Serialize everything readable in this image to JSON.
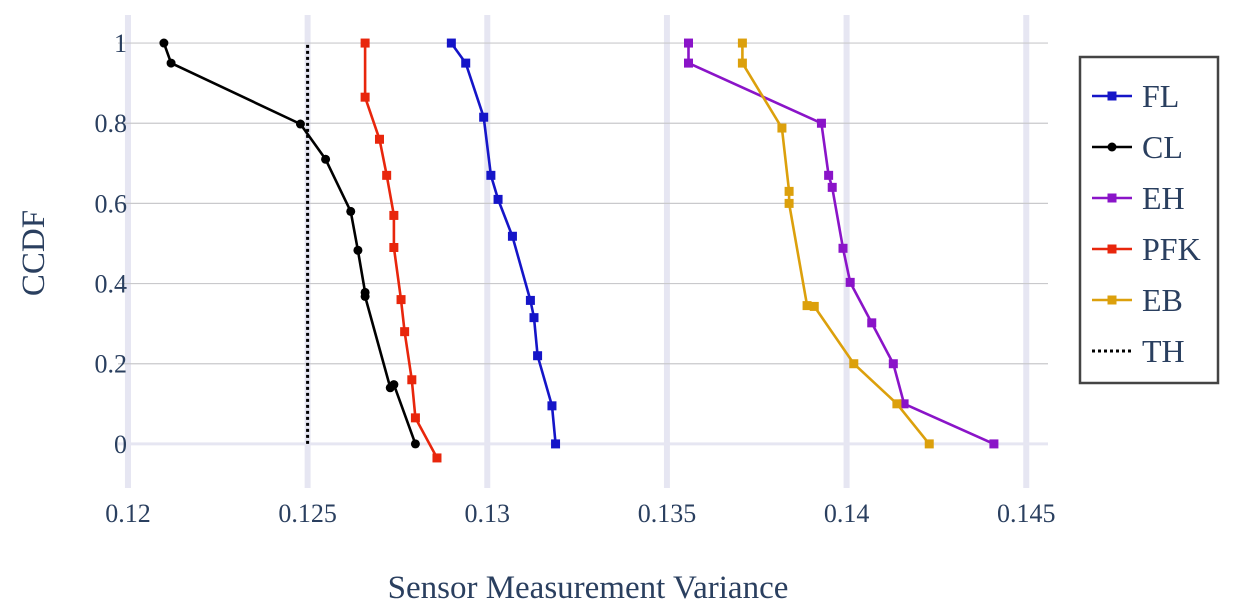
{
  "chart_data": {
    "type": "line",
    "xlabel": "Sensor Measurement Variance",
    "ylabel": "CCDF",
    "xlim": [
      0.1195,
      0.1458
    ],
    "ylim": [
      -0.11,
      1.07
    ],
    "x_ticks": [
      0.12,
      0.125,
      0.13,
      0.135,
      0.14,
      0.145
    ],
    "x_tick_labels": [
      "0.12",
      "0.125",
      "0.13",
      "0.135",
      "0.14",
      "0.145"
    ],
    "y_ticks": [
      0,
      0.2,
      0.4,
      0.6,
      0.8,
      1
    ],
    "y_tick_labels": [
      "0",
      "0.2",
      "0.4",
      "0.6",
      "0.8",
      "1"
    ],
    "grid": true,
    "legend_position": "right",
    "series": [
      {
        "name": "FL",
        "color": "#1515c8",
        "marker": "square",
        "dash": "solid",
        "x": [
          0.129,
          0.1294,
          0.1299,
          0.1301,
          0.1303,
          0.1307,
          0.1312,
          0.1313,
          0.1314,
          0.1318,
          0.1319
        ],
        "y": [
          1.0,
          0.95,
          0.815,
          0.67,
          0.61,
          0.518,
          0.358,
          0.315,
          0.22,
          0.095,
          0.0
        ]
      },
      {
        "name": "CL",
        "color": "#000000",
        "marker": "circle",
        "dash": "solid",
        "x": [
          0.121,
          0.1212,
          0.1248,
          0.1255,
          0.1262,
          0.1264,
          0.1266,
          0.1266,
          0.1273,
          0.1274,
          0.128
        ],
        "y": [
          1.0,
          0.95,
          0.798,
          0.71,
          0.58,
          0.483,
          0.378,
          0.368,
          0.14,
          0.148,
          0.0
        ]
      },
      {
        "name": "EH",
        "color": "#8a14c8",
        "marker": "square",
        "dash": "solid",
        "x": [
          0.1356,
          0.1356,
          0.1393,
          0.1395,
          0.1396,
          0.1399,
          0.1401,
          0.1407,
          0.1413,
          0.1416,
          0.1441
        ],
        "y": [
          1.0,
          0.95,
          0.8,
          0.67,
          0.64,
          0.488,
          0.403,
          0.302,
          0.2,
          0.1,
          0.0
        ]
      },
      {
        "name": "PFK",
        "color": "#e8260c",
        "marker": "square",
        "dash": "solid",
        "x": [
          0.1266,
          0.1266,
          0.127,
          0.1272,
          0.1274,
          0.1274,
          0.1276,
          0.1277,
          0.1279,
          0.128,
          0.1286
        ],
        "y": [
          1.0,
          0.865,
          0.76,
          0.67,
          0.57,
          0.49,
          0.36,
          0.28,
          0.16,
          0.065,
          -0.035
        ]
      },
      {
        "name": "EB",
        "color": "#dca00c",
        "marker": "square",
        "dash": "solid",
        "x": [
          0.1371,
          0.1371,
          0.1382,
          0.1384,
          0.1384,
          0.1389,
          0.1391,
          0.1402,
          0.1414,
          0.1423
        ],
        "y": [
          1.0,
          0.95,
          0.788,
          0.63,
          0.6,
          0.345,
          0.343,
          0.2,
          0.1,
          0.0
        ]
      },
      {
        "name": "TH",
        "color": "#000000",
        "marker": "none",
        "dash": "dot",
        "x": [
          0.125,
          0.125
        ],
        "y": [
          0.0,
          1.0
        ]
      }
    ]
  }
}
